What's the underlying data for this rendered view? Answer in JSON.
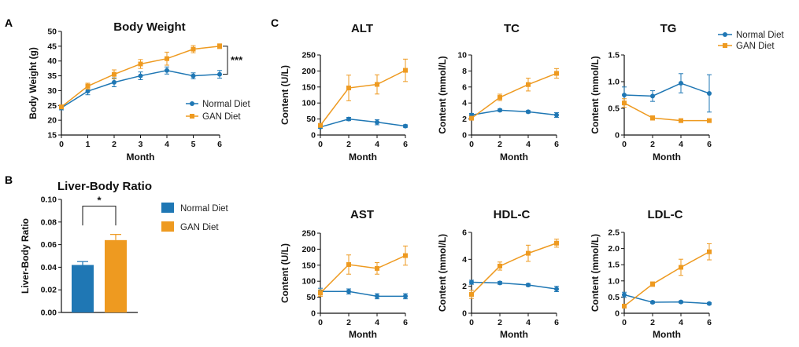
{
  "panel_letters": {
    "a": "A",
    "b": "B",
    "c": "C"
  },
  "colors": {
    "normal": "#1f77b4",
    "gan": "#ee9a20",
    "axis": "#111111"
  },
  "legend": {
    "normal": "Normal Diet",
    "gan": "GAN Diet"
  },
  "chart_data": [
    {
      "id": "body_weight",
      "type": "line",
      "title": "Body Weight",
      "xlabel": "Month",
      "ylabel": "Body Weight (g)",
      "x": [
        0,
        1,
        2,
        3,
        4,
        5,
        6
      ],
      "xticks": [
        "0",
        "1",
        "2",
        "3",
        "4",
        "5",
        "6"
      ],
      "ylim": [
        15,
        50
      ],
      "yticks": [
        "15",
        "20",
        "25",
        "30",
        "35",
        "40",
        "45",
        "50"
      ],
      "series": [
        {
          "name": "Normal Diet",
          "values": [
            24.2,
            29.8,
            32.8,
            35.0,
            36.8,
            35.0,
            35.5
          ],
          "err": [
            0.7,
            1.2,
            1.5,
            1.3,
            1.2,
            1.0,
            1.3
          ]
        },
        {
          "name": "GAN Diet",
          "values": [
            24.5,
            31.5,
            35.5,
            39.0,
            40.8,
            44.0,
            45.0
          ],
          "err": [
            0.6,
            1.0,
            1.5,
            1.5,
            2.2,
            1.2,
            0.8
          ]
        }
      ],
      "significance": "***"
    },
    {
      "id": "liver_body_ratio",
      "type": "bar",
      "title": "Liver-Body Ratio",
      "xlabel": "",
      "ylabel": "Liver-Body Ratio",
      "categories": [
        "Normal Diet",
        "GAN Diet"
      ],
      "values": [
        0.042,
        0.064
      ],
      "err": [
        0.003,
        0.005
      ],
      "ylim": [
        0,
        0.1
      ],
      "yticks": [
        "0.00",
        "0.02",
        "0.04",
        "0.06",
        "0.08",
        "0.10"
      ],
      "significance": "*"
    },
    {
      "id": "alt",
      "type": "line",
      "title": "ALT",
      "xlabel": "Month",
      "ylabel": "Content (U/L)",
      "x": [
        0,
        2,
        4,
        6
      ],
      "xticks": [
        "0",
        "2",
        "4",
        "6"
      ],
      "ylim": [
        0,
        250
      ],
      "yticks": [
        "0",
        "50",
        "100",
        "150",
        "200",
        "250"
      ],
      "series": [
        {
          "name": "Normal Diet",
          "values": [
            25,
            50,
            40,
            28
          ],
          "err": [
            4,
            5,
            8,
            4
          ]
        },
        {
          "name": "GAN Diet",
          "values": [
            30,
            147,
            158,
            202
          ],
          "err": [
            5,
            40,
            30,
            35
          ]
        }
      ]
    },
    {
      "id": "tc",
      "type": "line",
      "title": "TC",
      "xlabel": "Month",
      "ylabel": "Content  (mmol/L)",
      "x": [
        0,
        2,
        4,
        6
      ],
      "xticks": [
        "0",
        "2",
        "4",
        "6"
      ],
      "ylim": [
        0,
        10
      ],
      "yticks": [
        "0",
        "2",
        "4",
        "6",
        "8",
        "10"
      ],
      "series": [
        {
          "name": "Normal Diet",
          "values": [
            2.5,
            3.1,
            2.9,
            2.5
          ],
          "err": [
            0.2,
            0.15,
            0.15,
            0.3
          ]
        },
        {
          "name": "GAN Diet",
          "values": [
            2.1,
            4.7,
            6.3,
            7.7
          ],
          "err": [
            0.2,
            0.4,
            0.8,
            0.6
          ]
        }
      ]
    },
    {
      "id": "tg",
      "type": "line",
      "title": "TG",
      "xlabel": "Month",
      "ylabel": "Content  (mmol/L)",
      "x": [
        0,
        2,
        4,
        6
      ],
      "xticks": [
        "0",
        "2",
        "4",
        "6"
      ],
      "ylim": [
        0,
        1.5
      ],
      "yticks": [
        "0",
        "0.5",
        "1.0",
        "1.5"
      ],
      "series": [
        {
          "name": "Normal Diet",
          "values": [
            0.75,
            0.73,
            0.97,
            0.78
          ],
          "err": [
            0.15,
            0.1,
            0.18,
            0.35
          ]
        },
        {
          "name": "GAN Diet",
          "values": [
            0.6,
            0.32,
            0.27,
            0.27
          ],
          "err": [
            0.08,
            0.04,
            0.03,
            0.03
          ]
        }
      ]
    },
    {
      "id": "ast",
      "type": "line",
      "title": "AST",
      "xlabel": "Month",
      "ylabel": "Content (U/L)",
      "x": [
        0,
        2,
        4,
        6
      ],
      "xticks": [
        "0",
        "2",
        "4",
        "6"
      ],
      "ylim": [
        0,
        250
      ],
      "yticks": [
        "0",
        "50",
        "100",
        "150",
        "200",
        "250"
      ],
      "series": [
        {
          "name": "Normal Diet",
          "values": [
            68,
            68,
            53,
            53
          ],
          "err": [
            10,
            8,
            8,
            8
          ]
        },
        {
          "name": "GAN Diet",
          "values": [
            63,
            152,
            140,
            180
          ],
          "err": [
            10,
            30,
            18,
            30
          ]
        }
      ]
    },
    {
      "id": "hdlc",
      "type": "line",
      "title": "HDL-C",
      "xlabel": "Month",
      "ylabel": "Content  (mmol/L)",
      "x": [
        0,
        2,
        4,
        6
      ],
      "xticks": [
        "0",
        "2",
        "4",
        "6"
      ],
      "ylim": [
        0,
        6
      ],
      "yticks": [
        "0",
        "2",
        "4",
        "6"
      ],
      "series": [
        {
          "name": "Normal Diet",
          "values": [
            2.3,
            2.25,
            2.1,
            1.8
          ],
          "err": [
            0.15,
            0.1,
            0.1,
            0.2
          ]
        },
        {
          "name": "GAN Diet",
          "values": [
            1.4,
            3.5,
            4.45,
            5.2
          ],
          "err": [
            0.3,
            0.3,
            0.6,
            0.3
          ]
        }
      ]
    },
    {
      "id": "ldlc",
      "type": "line",
      "title": "LDL-C",
      "xlabel": "Month",
      "ylabel": "Content  (mmol/L)",
      "x": [
        0,
        2,
        4,
        6
      ],
      "xticks": [
        "0",
        "2",
        "4",
        "6"
      ],
      "ylim": [
        0,
        2.5
      ],
      "yticks": [
        "0",
        "0.5",
        "1.0",
        "1.5",
        "2.0",
        "2.5"
      ],
      "series": [
        {
          "name": "Normal Diet",
          "values": [
            0.57,
            0.34,
            0.35,
            0.3
          ],
          "err": [
            0.08,
            0.03,
            0.03,
            0.03
          ]
        },
        {
          "name": "GAN Diet",
          "values": [
            0.22,
            0.9,
            1.42,
            1.9
          ],
          "err": [
            0.05,
            0.07,
            0.25,
            0.25
          ]
        }
      ]
    }
  ]
}
